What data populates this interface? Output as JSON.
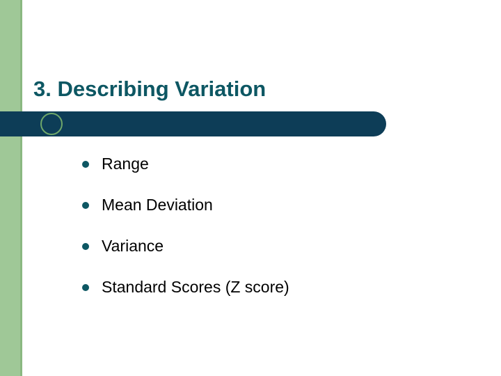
{
  "colors": {
    "green_accent": "#9fc897",
    "green_border": "#8ab881",
    "title_text": "#0d5763",
    "title_bar": "#0d3d57",
    "ring_border": "#6fa76a",
    "bullet": "#0d5763",
    "body_text": "#000000",
    "background": "#ffffff"
  },
  "title": "3.  Describing Variation",
  "title_fontsize": 31,
  "item_fontsize": 23,
  "items": [
    "Range",
    "Mean Deviation",
    "Variance",
    "Standard Scores (Z score)"
  ]
}
